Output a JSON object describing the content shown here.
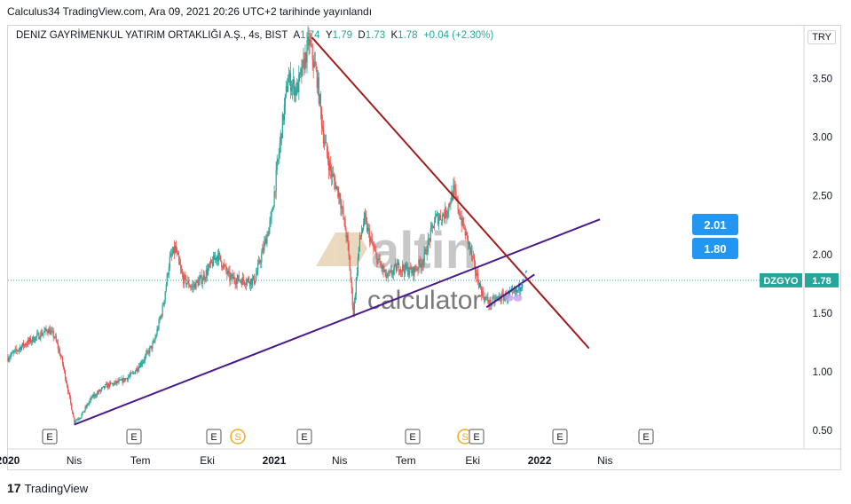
{
  "header": {
    "publish_text": "Calculus34 TradingView.com, Ara 09, 2021 20:26 UTC+2 tarihinde yayınlandı"
  },
  "legend": {
    "symbol": "DENIZ GAYRİMENKUL YATIRIM ORTAKLIĞI A.Ş., 4s, BIST",
    "open_label": "A",
    "open": "1.74",
    "high_label": "Y",
    "high": "1.79",
    "low_label": "D",
    "low": "1.73",
    "close_label": "K",
    "close": "1.78",
    "change": "+0.04 (+2.30%)"
  },
  "currency": "TRY",
  "watermark": {
    "brand": "altin",
    "sub": "calculator"
  },
  "footer": {
    "brand": "TradingView",
    "logo": "17"
  },
  "price_label": {
    "ticker": "DZGYO",
    "value": "1.78"
  },
  "targets": [
    {
      "value": "2.01"
    },
    {
      "value": "1.80"
    }
  ],
  "events": [
    "E",
    "E",
    "E",
    "S",
    "E",
    "E",
    "S",
    "E",
    "E",
    "E"
  ],
  "chart_data": {
    "type": "candlestick",
    "symbol": "DZGYO",
    "timeframe": "4s",
    "ylim": [
      0.35,
      3.95
    ],
    "yticks": [
      0.5,
      1.0,
      1.5,
      2.0,
      2.5,
      3.0,
      3.5
    ],
    "ytick_labels": [
      "0.50",
      "1.00",
      "1.50",
      "2.00",
      "2.50",
      "3.00",
      "3.50"
    ],
    "xticks": [
      "2020",
      "Nis",
      "Tem",
      "Eki",
      "2021",
      "Nis",
      "Tem",
      "Eki",
      "2022",
      "Nis"
    ],
    "xtick_values": [
      "2020-01",
      "2020-04",
      "2020-07",
      "2020-10",
      "2021-01",
      "2021-04",
      "2021-07",
      "2021-10",
      "2022-01",
      "2022-04"
    ],
    "last_price": 1.78,
    "price_path": [
      [
        "2020-01-01",
        1.12
      ],
      [
        "2020-01-20",
        1.22
      ],
      [
        "2020-02-10",
        1.3
      ],
      [
        "2020-02-25",
        1.36
      ],
      [
        "2020-03-05",
        1.3
      ],
      [
        "2020-03-15",
        1.1
      ],
      [
        "2020-03-25",
        0.8
      ],
      [
        "2020-04-01",
        0.58
      ],
      [
        "2020-04-10",
        0.62
      ],
      [
        "2020-04-25",
        0.78
      ],
      [
        "2020-05-15",
        0.88
      ],
      [
        "2020-06-05",
        0.92
      ],
      [
        "2020-06-20",
        0.98
      ],
      [
        "2020-07-05",
        1.1
      ],
      [
        "2020-07-20",
        1.25
      ],
      [
        "2020-08-01",
        1.55
      ],
      [
        "2020-08-10",
        1.95
      ],
      [
        "2020-08-18",
        2.05
      ],
      [
        "2020-08-28",
        1.8
      ],
      [
        "2020-09-10",
        1.72
      ],
      [
        "2020-09-25",
        1.8
      ],
      [
        "2020-10-05",
        1.9
      ],
      [
        "2020-10-15",
        2.0
      ],
      [
        "2020-11-01",
        1.8
      ],
      [
        "2020-11-20",
        1.78
      ],
      [
        "2020-12-05",
        1.78
      ],
      [
        "2020-12-15",
        2.0
      ],
      [
        "2020-12-28",
        2.3
      ],
      [
        "2021-01-10",
        3.0
      ],
      [
        "2021-01-20",
        3.5
      ],
      [
        "2021-02-01",
        3.4
      ],
      [
        "2021-02-10",
        3.6
      ],
      [
        "2021-02-18",
        3.82
      ],
      [
        "2021-03-01",
        3.5
      ],
      [
        "2021-03-10",
        3.0
      ],
      [
        "2021-03-20",
        2.7
      ],
      [
        "2021-04-01",
        2.5
      ],
      [
        "2021-04-12",
        2.1
      ],
      [
        "2021-04-20",
        1.5
      ],
      [
        "2021-04-28",
        2.1
      ],
      [
        "2021-05-05",
        2.3
      ],
      [
        "2021-05-20",
        2.0
      ],
      [
        "2021-06-05",
        1.8
      ],
      [
        "2021-06-20",
        1.9
      ],
      [
        "2021-07-10",
        1.85
      ],
      [
        "2021-07-25",
        1.95
      ],
      [
        "2021-08-10",
        2.3
      ],
      [
        "2021-08-25",
        2.35
      ],
      [
        "2021-09-05",
        2.55
      ],
      [
        "2021-09-15",
        2.3
      ],
      [
        "2021-09-25",
        2.1
      ],
      [
        "2021-10-05",
        1.85
      ],
      [
        "2021-10-15",
        1.65
      ],
      [
        "2021-10-25",
        1.58
      ],
      [
        "2021-11-05",
        1.63
      ],
      [
        "2021-11-20",
        1.65
      ],
      [
        "2021-12-01",
        1.68
      ],
      [
        "2021-12-09",
        1.78
      ]
    ],
    "trendlines": [
      {
        "name": "support",
        "color": "#4a1a8c",
        "from": [
          "2020-04-01",
          0.55
        ],
        "to": [
          "2022-03-25",
          2.3
        ]
      },
      {
        "name": "resistance",
        "color": "#a31d1d",
        "from": [
          "2021-02-22",
          3.85
        ],
        "to": [
          "2022-03-10",
          1.2
        ]
      },
      {
        "name": "channel",
        "color": "#4a1a8c",
        "from": [
          "2021-10-20",
          1.55
        ],
        "to": [
          "2021-12-25",
          1.83
        ]
      }
    ],
    "colors": {
      "up": "#26a69a",
      "down": "#ef5350",
      "support": "#4a1a8c",
      "resistance": "#a31d1d",
      "target": "#2196f3"
    }
  }
}
